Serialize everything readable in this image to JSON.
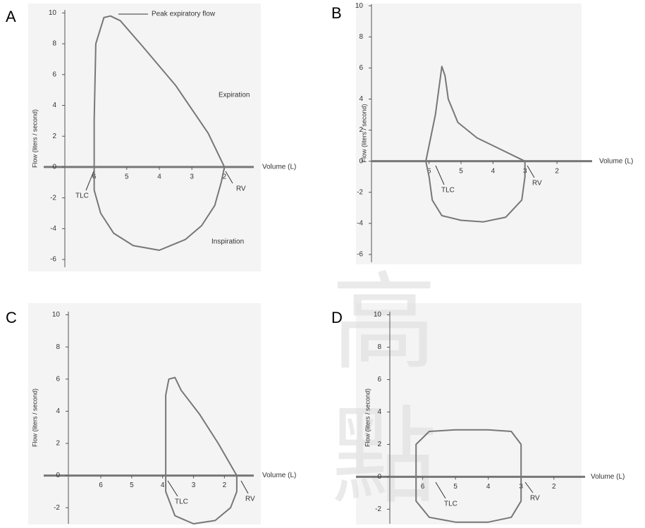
{
  "chart_data": [
    {
      "type": "line",
      "panel_label": "A",
      "y_label": "Flow (liters / second)",
      "x_label": "Volume (L)",
      "xlim": [
        6.9,
        1.1
      ],
      "ylim": [
        -6.5,
        10.2
      ],
      "xticks": [
        6,
        5,
        4,
        3,
        2
      ],
      "yticks": [
        10,
        8,
        6,
        4,
        2,
        0,
        -2,
        -4,
        -6
      ],
      "annotations": [
        "Peak expiratory flow",
        "Expiration",
        "Inspiration",
        "TLC",
        "RV"
      ],
      "x": [
        6,
        6,
        5.95,
        5.7,
        5.5,
        5.2,
        4.5,
        3.5,
        2.5,
        2,
        2.1,
        2.3,
        2.7,
        3.2,
        4,
        4.8,
        5.4,
        5.8,
        6,
        6
      ],
      "series": [
        {
          "color": "#777777",
          "values": [
            0,
            3,
            8,
            9.7,
            9.8,
            9.5,
            7.8,
            5.3,
            2.2,
            0,
            -1,
            -2.5,
            -3.8,
            -4.7,
            -5.4,
            -5.1,
            -4.3,
            -3,
            -1.5,
            0
          ]
        }
      ]
    },
    {
      "type": "line",
      "panel_label": "B",
      "y_label": "Flow (liters / second)",
      "x_label": "Volume (L)",
      "xlim": [
        7.8,
        0.9
      ],
      "ylim": [
        -6.5,
        10.1
      ],
      "xticks": [
        6,
        5,
        4,
        3,
        2
      ],
      "yticks": [
        10,
        8,
        6,
        4,
        2,
        0,
        -2,
        -4,
        -6
      ],
      "annotations": [
        "TLC",
        "RV"
      ],
      "x": [
        6.1,
        5.8,
        5.6,
        5.5,
        5.4,
        5.1,
        4.5,
        3.8,
        3.2,
        3,
        3,
        3.1,
        3.6,
        4.3,
        5,
        5.6,
        5.9,
        6,
        6.1
      ],
      "series": [
        {
          "color": "#777777",
          "values": [
            0,
            3,
            6.1,
            5.5,
            4,
            2.5,
            1.5,
            0.8,
            0.2,
            0,
            -1,
            -2.5,
            -3.6,
            -3.9,
            -3.8,
            -3.5,
            -2.5,
            -1,
            0
          ]
        }
      ]
    },
    {
      "type": "line",
      "panel_label": "C",
      "y_label": "Flow (liters / second)",
      "x_label": "Volume (L)",
      "xlim": [
        7.05,
        1.05
      ],
      "ylim": [
        -3,
        10.2
      ],
      "xticks": [
        6,
        5,
        4,
        3,
        2
      ],
      "yticks": [
        10,
        8,
        6,
        4,
        2,
        0,
        -2
      ],
      "annotations": [
        "TLC",
        "RV"
      ],
      "x": [
        3.9,
        3.9,
        3.8,
        3.6,
        3.4,
        2.8,
        2.2,
        1.6,
        1.6,
        1.8,
        2.3,
        3,
        3.6,
        3.9,
        3.9
      ],
      "series": [
        {
          "color": "#777777",
          "values": [
            0,
            5,
            6,
            6.1,
            5.3,
            3.8,
            2,
            0,
            -1,
            -2,
            -2.8,
            -3,
            -2.5,
            -1,
            0
          ]
        }
      ]
    },
    {
      "type": "line",
      "panel_label": "D",
      "y_label": "Flow (liters / second)",
      "x_label": "Volume (L)",
      "xlim": [
        7.0,
        1.05
      ],
      "ylim": [
        -2.9,
        10.2
      ],
      "xticks": [
        6,
        5,
        4,
        3,
        2
      ],
      "yticks": [
        10,
        8,
        6,
        4,
        2,
        0,
        -2
      ],
      "annotations": [
        "TLC",
        "RV"
      ],
      "x": [
        6.2,
        6.2,
        5.8,
        5,
        4,
        3.3,
        3,
        3,
        3,
        3.3,
        4,
        5,
        5.8,
        6.2,
        6.2
      ],
      "series": [
        {
          "color": "#777777",
          "values": [
            0,
            2,
            2.8,
            2.9,
            2.9,
            2.8,
            2,
            0,
            -1.5,
            -2.5,
            -2.8,
            -2.8,
            -2.5,
            -1.5,
            0
          ]
        }
      ]
    }
  ],
  "watermark": [
    "高",
    "點"
  ]
}
